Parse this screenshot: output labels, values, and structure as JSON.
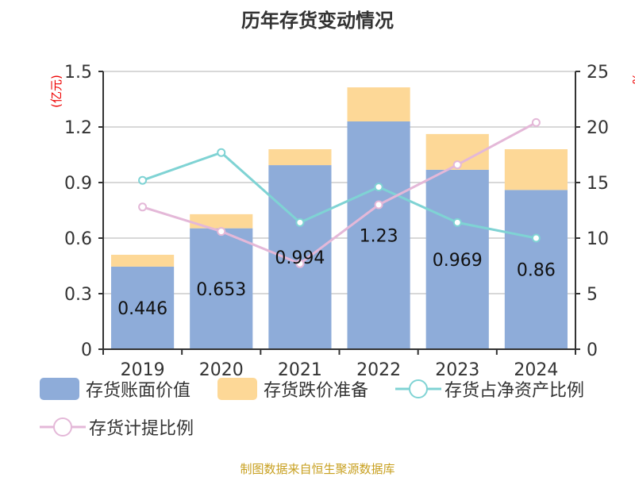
{
  "title": "历年存货变动情况",
  "source": "制图数据来自恒生聚源数据库",
  "chart_data": {
    "type": "bar",
    "title": "历年存货变动情况",
    "categories": [
      "2019",
      "2020",
      "2021",
      "2022",
      "2023",
      "2024"
    ],
    "left_axis": {
      "label": "(亿元)",
      "ylim": [
        0,
        1.5
      ],
      "ticks": [
        "0",
        "0.3",
        "0.6",
        "0.9",
        "1.2",
        "1.5"
      ]
    },
    "right_axis": {
      "label": "%",
      "ylim": [
        0,
        25
      ],
      "ticks": [
        "0",
        "5",
        "10",
        "15",
        "20",
        "25"
      ]
    },
    "series": [
      {
        "name": "存货账面价值",
        "type": "bar",
        "stack": true,
        "color": "#8eacd9",
        "values": [
          0.446,
          0.653,
          0.994,
          1.23,
          0.969,
          0.86
        ],
        "labels": [
          "0.446",
          "0.653",
          "0.994",
          "1.23",
          "0.969",
          "0.86"
        ]
      },
      {
        "name": "存货跌价准备",
        "type": "bar",
        "stack": true,
        "color": "#fdd897",
        "values": [
          0.064,
          0.076,
          0.086,
          0.184,
          0.193,
          0.22
        ]
      },
      {
        "name": "存货占净资产比例",
        "type": "line",
        "axis": "right",
        "color": "#7fd3d4",
        "values": [
          15.2,
          17.7,
          11.4,
          14.6,
          11.4,
          10.0
        ]
      },
      {
        "name": "存货计提比例",
        "type": "line",
        "axis": "right",
        "color": "#e4b8d8",
        "values": [
          12.8,
          10.6,
          7.7,
          13.0,
          16.6,
          20.4
        ]
      }
    ],
    "grid": true,
    "legend": "bottom"
  }
}
